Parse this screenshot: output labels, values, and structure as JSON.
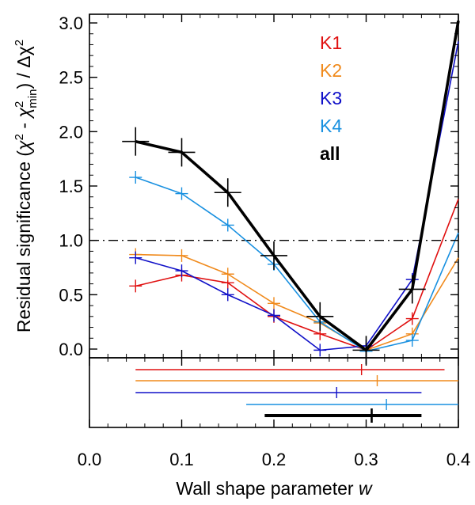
{
  "chart_data": {
    "type": "line",
    "xlabel_prefix": "Wall shape parameter ",
    "xlabel_var": "w",
    "ylabel_a": "Residual significance (",
    "ylabel_chi1": "χ",
    "ylabel_sup1": "2",
    "ylabel_minus": " - ",
    "ylabel_chi2": "χ",
    "ylabel_sup2": "2",
    "ylabel_sub": "min",
    "ylabel_b": ") / Δχ",
    "ylabel_sup3": "2",
    "xlim": [
      0.0,
      0.4
    ],
    "ylim": [
      -0.08,
      3.08
    ],
    "x_ticks": [
      0.0,
      0.1,
      0.2,
      0.3,
      0.4
    ],
    "x_tick_labels": [
      "0.0",
      "0.1",
      "0.2",
      "0.3",
      "0.4"
    ],
    "y_ticks": [
      0.0,
      0.5,
      1.0,
      1.5,
      2.0,
      2.5,
      3.0
    ],
    "y_tick_labels": [
      "0.0",
      "0.5",
      "1.0",
      "1.5",
      "2.0",
      "2.5",
      "3.0"
    ],
    "threshold_line": 1.0,
    "x": [
      0.05,
      0.1,
      0.15,
      0.2,
      0.25,
      0.3,
      0.35,
      0.4
    ],
    "series": [
      {
        "name": "K1",
        "color": "#e01010",
        "values": [
          0.58,
          0.68,
          0.61,
          0.3,
          0.14,
          -0.01,
          0.28,
          1.38
        ]
      },
      {
        "name": "K2",
        "color": "#f08a1c",
        "values": [
          0.87,
          0.86,
          0.69,
          0.42,
          0.24,
          -0.01,
          0.14,
          0.84
        ]
      },
      {
        "name": "K3",
        "color": "#1010c8",
        "values": [
          0.84,
          0.72,
          0.5,
          0.31,
          -0.01,
          0.03,
          0.64,
          2.83
        ]
      },
      {
        "name": "K4",
        "color": "#1890e0",
        "values": [
          1.58,
          1.43,
          1.14,
          0.78,
          0.25,
          -0.02,
          0.08,
          1.07
        ]
      },
      {
        "name": "all",
        "color": "#000000",
        "values": [
          1.91,
          1.81,
          1.44,
          0.86,
          0.3,
          -0.01,
          0.55,
          3.02
        ],
        "bold": true
      }
    ],
    "bottom_panel": {
      "description": "best-fit w with error range per series",
      "rows": [
        {
          "name": "K1",
          "color": "#e01010",
          "best": 0.295,
          "low": 0.05,
          "high": 0.385
        },
        {
          "name": "K2",
          "color": "#f08a1c",
          "best": 0.312,
          "low": 0.05,
          "high": 0.4
        },
        {
          "name": "K3",
          "color": "#1010c8",
          "best": 0.268,
          "low": 0.05,
          "high": 0.36
        },
        {
          "name": "K4",
          "color": "#1890e0",
          "best": 0.322,
          "low": 0.17,
          "high": 0.4
        },
        {
          "name": "all",
          "color": "#000000",
          "best": 0.306,
          "low": 0.19,
          "high": 0.36,
          "bold": true
        }
      ]
    }
  }
}
